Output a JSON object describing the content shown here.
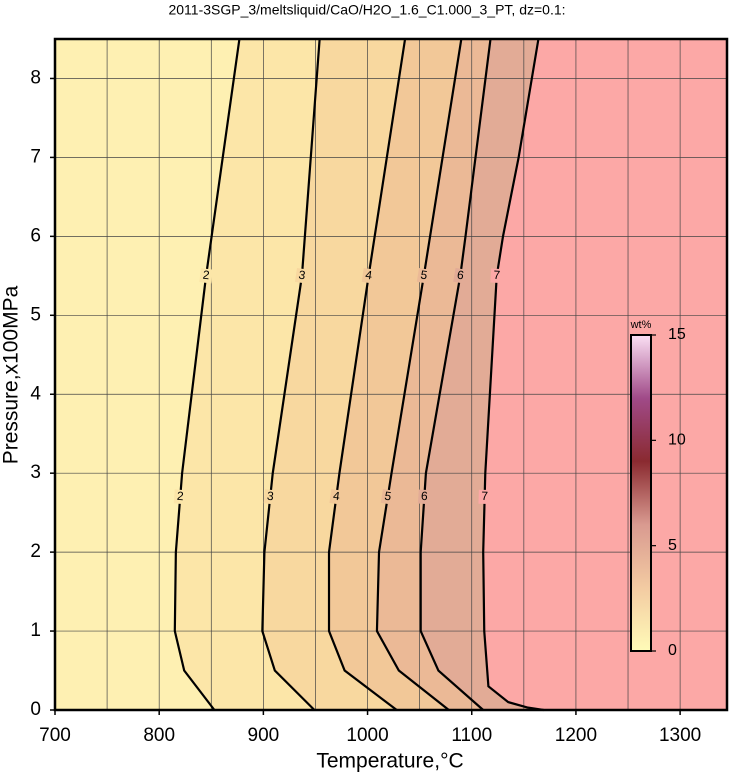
{
  "chart_data": {
    "type": "contour",
    "title": "2011-3SGP_3/meltsliquid/CaO/H2O_1.6_C1.000_3_PT, dz=0.1:",
    "x_label": "Temperature,°C",
    "y_label": "Pressure,x100MPa",
    "xlim": [
      700,
      1345
    ],
    "ylim": [
      0,
      8.5
    ],
    "xticks": [
      700,
      800,
      900,
      1000,
      1100,
      1200,
      1300
    ],
    "xminorticks": [
      750,
      850,
      950,
      1050,
      1150,
      1250
    ],
    "yticks": [
      0,
      1,
      2,
      3,
      4,
      5,
      6,
      7,
      8
    ],
    "grid": true,
    "base_color": "#fef0b2",
    "series": [
      {
        "name": "2",
        "color": "#fce6a8",
        "x": [
          853,
          824,
          815,
          816,
          822,
          845,
          877
        ],
        "values": [
          0,
          0.5,
          1,
          2,
          3,
          5.5,
          8.5
        ]
      },
      {
        "name": "3",
        "color": "#f8d89f",
        "x": [
          949,
          911,
          899,
          901,
          909,
          937,
          954
        ],
        "values": [
          0,
          0.5,
          1,
          2,
          3,
          5.5,
          8.5
        ]
      },
      {
        "name": "4",
        "color": "#f2c898",
        "x": [
          1028,
          978,
          963,
          963,
          973,
          1001,
          1036
        ],
        "values": [
          0,
          0.5,
          1,
          2,
          3,
          5.5,
          8.5
        ]
      },
      {
        "name": "5",
        "color": "#ebb996",
        "x": [
          1078,
          1030,
          1009,
          1011,
          1023,
          1054,
          1090
        ],
        "values": [
          0,
          0.5,
          1,
          2,
          3,
          5.5,
          8.5
        ]
      },
      {
        "name": "6",
        "color": "#e2ab96",
        "x": [
          1111,
          1068,
          1051,
          1051,
          1056,
          1089,
          1094,
          1118
        ],
        "values": [
          0,
          0.5,
          1,
          2,
          3,
          5.5,
          6,
          8.5
        ]
      },
      {
        "name": "7",
        "color": "#fca8a6",
        "x": [
          1169,
          1154,
          1135,
          1116,
          1112,
          1111,
          1113,
          1124,
          1130,
          1145,
          1164
        ],
        "values": [
          0,
          0.03,
          0.1,
          0.3,
          1,
          2,
          3,
          5.5,
          6,
          7,
          8.5
        ]
      }
    ],
    "colorbar": {
      "label": "wt%",
      "lim": [
        0,
        15
      ],
      "ticks": [
        0,
        5,
        10,
        15
      ],
      "colors": [
        "#fffbb8",
        "#f3cba2",
        "#d99a90",
        "#8a2a30",
        "#a04a88",
        "#fbe0f4"
      ]
    }
  }
}
